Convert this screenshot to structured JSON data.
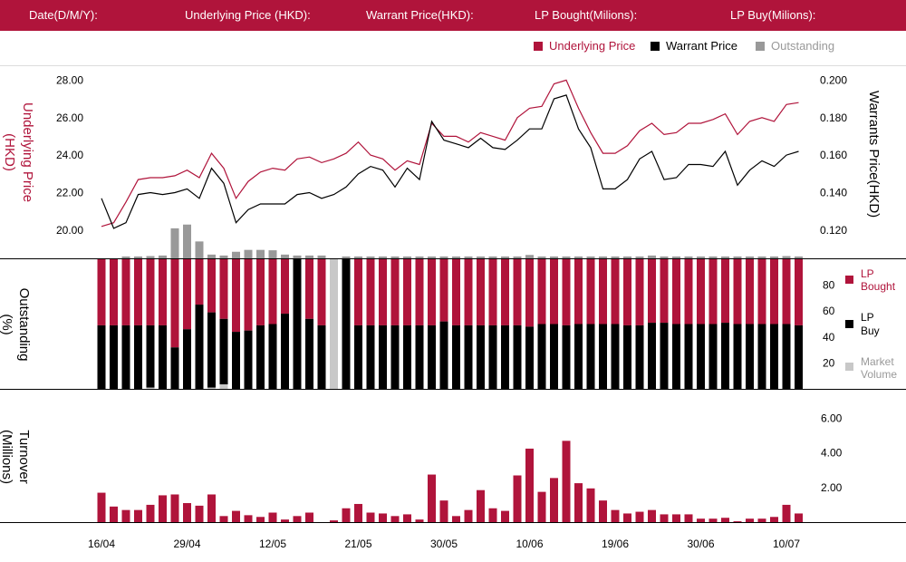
{
  "header": {
    "date_label": "Date(D/M/Y):",
    "underlying_label": "Underlying Price (HKD):",
    "warrant_label": "Warrant  Price(HKD):",
    "lp_bought_label": "LP Bought(Milions):",
    "lp_buy_label": "LP Buy(Milions):"
  },
  "colors": {
    "underlying": "#b0143b",
    "warrant": "#000000",
    "outstanding": "#999999",
    "market_volume": "#c8c8c8",
    "header_bg": "#b0143b"
  },
  "legend_top": {
    "underlying": "Underlying Price",
    "warrant": "Warrant  Price",
    "outstanding": "Outstanding"
  },
  "chart_data": [
    {
      "type": "line",
      "ylabel": "Underlying Price (HKD)",
      "y2label": "Warrants  Price(HKD)",
      "y_ticks": [
        "20.00",
        "22.00",
        "24.00",
        "26.00",
        "28.00"
      ],
      "y2_ticks": [
        "0.120",
        "0.140",
        "0.160",
        "0.180",
        "0.200"
      ],
      "ylim": [
        18.5,
        28.5
      ],
      "y2lim": [
        0.105,
        0.205
      ],
      "series": [
        {
          "name": "Underlying Price",
          "values": [
            20.2,
            20.4,
            21.5,
            22.7,
            22.8,
            22.8,
            22.9,
            23.2,
            22.8,
            24.1,
            23.3,
            21.7,
            22.6,
            23.1,
            23.3,
            23.2,
            23.8,
            23.9,
            23.6,
            23.8,
            24.1,
            24.7,
            24.0,
            23.8,
            23.2,
            23.7,
            23.5,
            25.7,
            25.0,
            25.0,
            24.7,
            25.2,
            25.0,
            24.8,
            26.0,
            26.5,
            26.6,
            27.8,
            28.0,
            26.5,
            25.2,
            24.1,
            24.1,
            24.5,
            25.3,
            25.7,
            25.1,
            25.2,
            25.7,
            25.7,
            25.9,
            26.2,
            25.1,
            25.8,
            26.0,
            25.8,
            26.7,
            26.8
          ]
        },
        {
          "name": "Warrant  Price",
          "values": [
            0.137,
            0.121,
            0.124,
            0.139,
            0.14,
            0.139,
            0.14,
            0.142,
            0.137,
            0.153,
            0.145,
            0.124,
            0.131,
            0.134,
            0.134,
            0.134,
            0.139,
            0.14,
            0.137,
            0.139,
            0.143,
            0.15,
            0.154,
            0.152,
            0.143,
            0.153,
            0.147,
            0.178,
            0.168,
            0.166,
            0.164,
            0.169,
            0.164,
            0.163,
            0.168,
            0.174,
            0.174,
            0.19,
            0.192,
            0.174,
            0.164,
            0.142,
            0.142,
            0.147,
            0.158,
            0.162,
            0.147,
            0.148,
            0.155,
            0.155,
            0.154,
            0.162,
            0.144,
            0.152,
            0.157,
            0.154,
            0.16,
            0.162
          ]
        },
        {
          "name": "Outstanding",
          "values": [
            0,
            0,
            1,
            1,
            1.2,
            1.5,
            16,
            18,
            9,
            2,
            1.5,
            3.5,
            4.5,
            4.5,
            4.3,
            2,
            1.5,
            1.5,
            1.5,
            0,
            1,
            1,
            1,
            1,
            1,
            1,
            1,
            1,
            1,
            1,
            1,
            1,
            1,
            1,
            1,
            1.8,
            1,
            1,
            1,
            1,
            1,
            1,
            1,
            1,
            1,
            1.5,
            1,
            1,
            1,
            1,
            1,
            1,
            1,
            1,
            1,
            1,
            1.2,
            1
          ]
        }
      ]
    },
    {
      "type": "bar",
      "stacked": true,
      "ylabel": "Outstanding (%)",
      "y_ticks": [
        "20",
        "40",
        "60",
        "80"
      ],
      "ylim": [
        0,
        100
      ],
      "legend": [
        "LP Bought",
        "LP Buy",
        "Market Volume"
      ],
      "series": [
        {
          "name": "LP Buy",
          "values": [
            49,
            49,
            49,
            49,
            49,
            49,
            32,
            46,
            65,
            59,
            54,
            44,
            45,
            49,
            50,
            58,
            100,
            54,
            49,
            0,
            100,
            49,
            49,
            49,
            49,
            49,
            49,
            49,
            52,
            49,
            49,
            49,
            49,
            49,
            49,
            48,
            50,
            50,
            49,
            50,
            50,
            50,
            50,
            49,
            49,
            51,
            51,
            50,
            50,
            50,
            50,
            51,
            50,
            50,
            50,
            50,
            50,
            49
          ]
        },
        {
          "name": "LP Bought",
          "values": [
            51,
            51,
            51,
            51,
            51,
            51,
            68,
            54,
            35,
            41,
            46,
            56,
            55,
            51,
            50,
            42,
            0,
            46,
            51,
            0,
            0,
            51,
            51,
            51,
            51,
            51,
            51,
            51,
            48,
            51,
            51,
            51,
            51,
            51,
            51,
            52,
            50,
            50,
            51,
            50,
            50,
            50,
            50,
            51,
            51,
            49,
            49,
            50,
            50,
            50,
            50,
            49,
            50,
            50,
            50,
            50,
            50,
            51
          ]
        },
        {
          "name": "Market Volume",
          "values": [
            0,
            0,
            0,
            0,
            1,
            0,
            0,
            0,
            0,
            1,
            3.5,
            0,
            0,
            0,
            0,
            0,
            0,
            0,
            0,
            100,
            0,
            0,
            0,
            0,
            0,
            0,
            0,
            0,
            0,
            0,
            0,
            0,
            0,
            0,
            0,
            0,
            0,
            0,
            0,
            0,
            0,
            0,
            0,
            0,
            0,
            0,
            0,
            0,
            0,
            0,
            0,
            0,
            0,
            0,
            0,
            0,
            0,
            0
          ]
        }
      ]
    },
    {
      "type": "bar",
      "ylabel": "Turnover (Millions)",
      "y_ticks": [
        "2.00",
        "4.00",
        "6.00"
      ],
      "ylim": [
        0,
        6.5
      ],
      "x_ticks": [
        "16/04",
        "29/04",
        "12/05",
        "21/05",
        "30/05",
        "10/06",
        "19/06",
        "30/06",
        "10/07"
      ],
      "x_tick_index": [
        0,
        7,
        14,
        21,
        28,
        35,
        42,
        49,
        56
      ],
      "values": [
        1.7,
        0.9,
        0.7,
        0.7,
        1.0,
        1.55,
        1.6,
        1.1,
        0.95,
        1.6,
        0.35,
        0.65,
        0.4,
        0.3,
        0.55,
        0.15,
        0.35,
        0.55,
        0,
        0.1,
        0.8,
        1.05,
        0.55,
        0.5,
        0.35,
        0.45,
        0.15,
        2.75,
        1.25,
        0.35,
        0.7,
        1.85,
        0.8,
        0.65,
        2.7,
        4.25,
        1.75,
        2.55,
        4.7,
        2.25,
        1.95,
        1.25,
        0.7,
        0.5,
        0.6,
        0.7,
        0.45,
        0.45,
        0.45,
        0.2,
        0.2,
        0.25,
        0.05,
        0.2,
        0.2,
        0.3,
        1.0,
        0.5
      ]
    }
  ]
}
